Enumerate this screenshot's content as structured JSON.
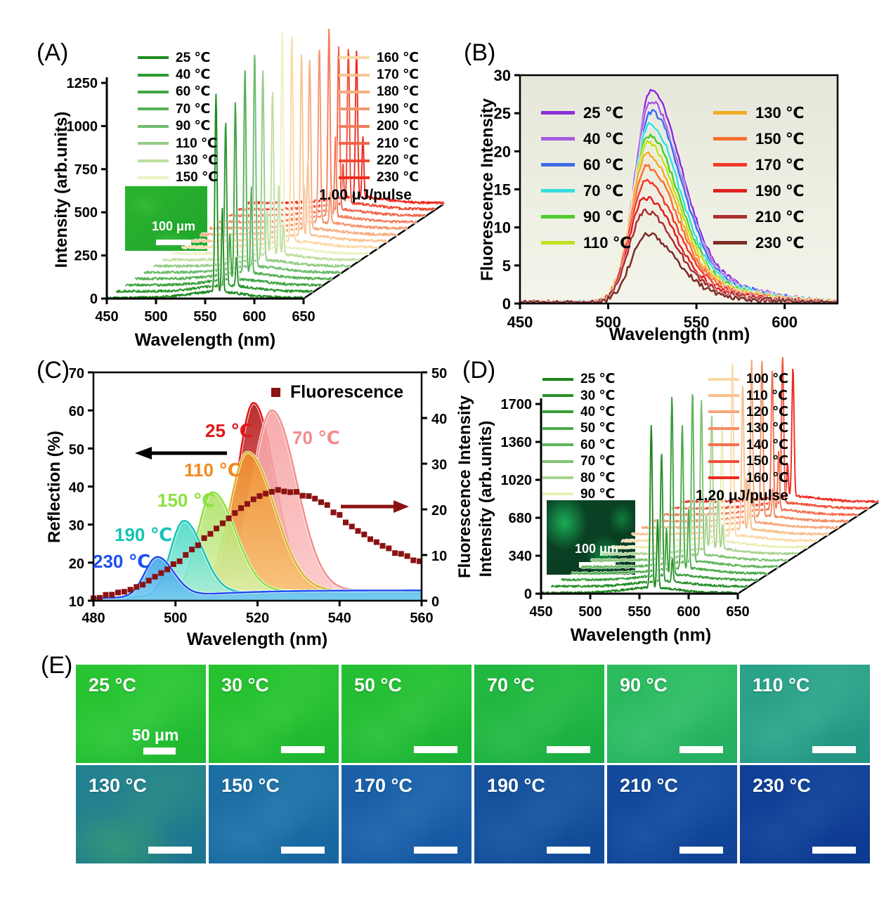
{
  "figure": {
    "background": "#ffffff",
    "description_text_visible": ""
  },
  "chart_data": [
    {
      "id": "A",
      "panel_letter": "(A)",
      "type": "line",
      "variant": "3d-waterfall-lasing-spectra",
      "xlabel": "Wavelength (nm)",
      "ylabel": "Intensity (arb.units)",
      "xlim": [
        450,
        650
      ],
      "ylim": [
        0,
        1250
      ],
      "xticks": [
        450,
        500,
        550,
        600,
        650
      ],
      "yticks": [
        0,
        250,
        500,
        750,
        1000,
        1250
      ],
      "annotation": "1.00 μJ/pulse",
      "inset_scalebar_label": "100 μm",
      "lasing_peak_nm": 561,
      "legend_position": "two columns inside top",
      "series": [
        {
          "name": "25 ℃",
          "color": "#1f8b1f",
          "peak_intensity": 1150
        },
        {
          "name": "40 ℃",
          "color": "#2e982e",
          "peak_intensity": 950
        },
        {
          "name": "60 ℃",
          "color": "#40a440",
          "peak_intensity": 1020
        },
        {
          "name": "70 ℃",
          "color": "#55b155",
          "peak_intensity": 1180
        },
        {
          "name": "90 ℃",
          "color": "#6fbd6f",
          "peak_intensity": 1250
        },
        {
          "name": "110 ℃",
          "color": "#94cc85",
          "peak_intensity": 1100
        },
        {
          "name": "130 ℃",
          "color": "#c0dfa0",
          "peak_intensity": 950
        },
        {
          "name": "150 ℃",
          "color": "#ecf2c0",
          "peak_intensity": 1250
        },
        {
          "name": "160 ℃",
          "color": "#fbd9a6",
          "peak_intensity": 1180
        },
        {
          "name": "170 ℃",
          "color": "#f9c492",
          "peak_intensity": 1050
        },
        {
          "name": "180 ℃",
          "color": "#f7ad80",
          "peak_intensity": 980
        },
        {
          "name": "190 ℃",
          "color": "#f5966e",
          "peak_intensity": 1020
        },
        {
          "name": "200 ℃",
          "color": "#f37e5c",
          "peak_intensity": 1080
        },
        {
          "name": "210 ℃",
          "color": "#f1654a",
          "peak_intensity": 950
        },
        {
          "name": "220 ℃",
          "color": "#ef4b36",
          "peak_intensity": 900
        },
        {
          "name": "230 ℃",
          "color": "#ee2a1e",
          "peak_intensity": 840
        }
      ]
    },
    {
      "id": "B",
      "panel_letter": "(B)",
      "type": "line",
      "variant": "fluorescence-spectra",
      "xlabel": "Wavelength (nm)",
      "ylabel": "Fluorescence Intensity",
      "xlim": [
        450,
        630
      ],
      "ylim": [
        0,
        30
      ],
      "xticks": [
        450,
        500,
        550,
        600
      ],
      "yticks": [
        0,
        5,
        10,
        15,
        20,
        25,
        30
      ],
      "plot_bg": [
        "#e6e7da",
        "#f4f5ea"
      ],
      "series": [
        {
          "name": "25 ℃",
          "color": "#8b2fd6",
          "peak_intensity": 28,
          "peak_nm": 524.5
        },
        {
          "name": "40 ℃",
          "color": "#a55ce0",
          "peak_intensity": 26.6,
          "peak_nm": 524
        },
        {
          "name": "60 ℃",
          "color": "#3f6ce8",
          "peak_intensity": 25.2,
          "peak_nm": 524.5
        },
        {
          "name": "70 ℃",
          "color": "#35dede",
          "peak_intensity": 23.6,
          "peak_nm": 523.5
        },
        {
          "name": "90 ℃",
          "color": "#4ecc2e",
          "peak_intensity": 22.2,
          "peak_nm": 523
        },
        {
          "name": "110 ℃",
          "color": "#c3e01e",
          "peak_intensity": 21,
          "peak_nm": 522.5
        },
        {
          "name": "130 ℃",
          "color": "#f2aa24",
          "peak_intensity": 19.6,
          "peak_nm": 522
        },
        {
          "name": "150 ℃",
          "color": "#f4702e",
          "peak_intensity": 18,
          "peak_nm": 522
        },
        {
          "name": "170 ℃",
          "color": "#f23a28",
          "peak_intensity": 16,
          "peak_nm": 521.5
        },
        {
          "name": "190 ℃",
          "color": "#e02020",
          "peak_intensity": 14,
          "peak_nm": 521
        },
        {
          "name": "210 ℃",
          "color": "#ab2f2f",
          "peak_intensity": 12.2,
          "peak_nm": 521
        },
        {
          "name": "230 ℃",
          "color": "#7c2d25",
          "peak_intensity": 9,
          "peak_nm": 522
        }
      ]
    },
    {
      "id": "C",
      "panel_letter": "(C)",
      "type": "area+scatter",
      "xlabel": "Wavelength (nm)",
      "ylabel_left": "Reflection (%)",
      "ylabel_right": "Fluorescence Intensity",
      "xlim": [
        480,
        560
      ],
      "ylim_left": [
        10,
        70
      ],
      "ylim_right": [
        0,
        50
      ],
      "xticks": [
        480,
        500,
        520,
        540,
        560
      ],
      "yticks_left": [
        10,
        20,
        30,
        40,
        50,
        60,
        70
      ],
      "yticks_right": [
        0,
        10,
        20,
        30,
        40,
        50
      ],
      "reflection_series": [
        {
          "name": "25 ℃",
          "color": "#e01818",
          "label_color": "#e01818",
          "fill": [
            "#b01212",
            "#f28080"
          ],
          "peak_nm": 519,
          "peak_reflection_pct": 62,
          "sigma_nm": [
            4.0,
            5.2
          ]
        },
        {
          "name": "70 ℃",
          "color": "#f58c8c",
          "label_color": "#f58c8c",
          "fill": [
            "#f6a0a0",
            "#fbc6c6"
          ],
          "peak_nm": 523.5,
          "peak_reflection_pct": 60,
          "sigma_nm": [
            4.8,
            6.0
          ]
        },
        {
          "name": "110 ℃",
          "color": "#d8b428",
          "label_color": "#f08a1e",
          "fill": [
            "#ef8f2a",
            "#f8c878"
          ],
          "peak_nm": 517.5,
          "peak_reflection_pct": 49,
          "sigma_nm": [
            4.3,
            6.6
          ]
        },
        {
          "name": "150 ℃",
          "color": "#8ce03c",
          "label_color": "#8ce03c",
          "fill": [
            "#a9e060",
            "#dcf2b0"
          ],
          "peak_nm": 509,
          "peak_reflection_pct": 38.5,
          "sigma_nm": [
            3.6,
            5.6
          ]
        },
        {
          "name": "190 ℃",
          "color": "#14c4b4",
          "label_color": "#14c4b4",
          "fill": [
            "#45d8c5",
            "#abeede"
          ],
          "peak_nm": 502,
          "peak_reflection_pct": 31,
          "sigma_nm": [
            3.2,
            4.6
          ]
        },
        {
          "name": "230 ℃",
          "color": "#1d50f0",
          "label_color": "#1d50f0",
          "fill": [
            "#3e9fe8",
            "#70c8f2"
          ],
          "peak_nm": 495.5,
          "peak_reflection_pct": 21.5,
          "sigma_nm": [
            3.0,
            4.0
          ]
        }
      ],
      "fluorescence_scatter": {
        "label": "Fluorescence",
        "color": "#8b1212",
        "points": [
          [
            480,
            0.5
          ],
          [
            484,
            1.2
          ],
          [
            488,
            2.2
          ],
          [
            492,
            3.6
          ],
          [
            496,
            5.6
          ],
          [
            500,
            8
          ],
          [
            504,
            11
          ],
          [
            508,
            14.5
          ],
          [
            512,
            17.5
          ],
          [
            516,
            20.5
          ],
          [
            520,
            22.8
          ],
          [
            524,
            24
          ],
          [
            528,
            24
          ],
          [
            532,
            23
          ],
          [
            536,
            21.5
          ],
          [
            540,
            18.5
          ],
          [
            544,
            15.5
          ],
          [
            548,
            13.2
          ],
          [
            552,
            11.2
          ],
          [
            556,
            9.6
          ],
          [
            560,
            8.6
          ]
        ]
      }
    },
    {
      "id": "D",
      "panel_letter": "(D)",
      "type": "line",
      "variant": "3d-waterfall-lasing-spectra",
      "xlabel": "Wavelength (nm)",
      "ylabel": "Intensity (arb.units)",
      "xlim": [
        450,
        650
      ],
      "ylim": [
        0,
        1700
      ],
      "xticks": [
        450,
        500,
        550,
        600,
        650
      ],
      "yticks": [
        0,
        340,
        680,
        1020,
        1360,
        1700
      ],
      "annotation": "1.20 μJ/pulse",
      "inset_scalebar_label": "100 μm",
      "lasing_peak_nm": 562,
      "legend_position": "two columns inside top",
      "series": [
        {
          "name": "25 ℃",
          "color": "#1d861d",
          "peak_intensity": 1450
        },
        {
          "name": "30 ℃",
          "color": "#2a922a",
          "peak_intensity": 1150
        },
        {
          "name": "40 ℃",
          "color": "#389e38",
          "peak_intensity": 1600
        },
        {
          "name": "50 ℃",
          "color": "#4aaa48",
          "peak_intensity": 1280
        },
        {
          "name": "60 ℃",
          "color": "#60b45a",
          "peak_intensity": 1520
        },
        {
          "name": "70 ℃",
          "color": "#80c272",
          "peak_intensity": 1380
        },
        {
          "name": "80 ℃",
          "color": "#a8d28e",
          "peak_intensity": 1200
        },
        {
          "name": "90 ℃",
          "color": "#e8efb4",
          "peak_intensity": 1050
        },
        {
          "name": "100 ℃",
          "color": "#fbd9a6",
          "peak_intensity": 1550
        },
        {
          "name": "110 ℃",
          "color": "#f9c08c",
          "peak_intensity": 1300
        },
        {
          "name": "120 ℃",
          "color": "#f7a678",
          "peak_intensity": 1450
        },
        {
          "name": "130 ℃",
          "color": "#f58c64",
          "peak_intensity": 1400
        },
        {
          "name": "140 ℃",
          "color": "#f37050",
          "peak_intensity": 1250
        },
        {
          "name": "150 ℃",
          "color": "#f1523c",
          "peak_intensity": 1300
        },
        {
          "name": "160 ℃",
          "color": "#ee2a1e",
          "peak_intensity": 1150
        }
      ]
    },
    {
      "id": "E",
      "panel_letter": "(E)",
      "type": "micrograph-grid",
      "scalebar_label": "50 μm",
      "cells": [
        {
          "label": "25 °C",
          "base": "#28c431",
          "base2": "#1fb733",
          "blob": "#52dc58"
        },
        {
          "label": "30 °C",
          "base": "#26c22f",
          "base2": "#1db531",
          "blob": "#4fd850"
        },
        {
          "label": "50 °C",
          "base": "#24bf33",
          "base2": "#1cb236",
          "blob": "#4bd553"
        },
        {
          "label": "70 °C",
          "base": "#21b83f",
          "base2": "#1aac42",
          "blob": "#47cf62"
        },
        {
          "label": "90 °C",
          "base": "#2cbb5f",
          "base2": "#24ae62",
          "blob": "#55d283"
        },
        {
          "label": "110 °C",
          "base": "#2aa287",
          "base2": "#229483",
          "blob": "#52c0a6"
        },
        {
          "label": "130 °C",
          "base": "#23818f",
          "base2": "#1d7390",
          "blob": "#3da479",
          "patch": "#36a06a"
        },
        {
          "label": "150 °C",
          "base": "#1c6fa4",
          "base2": "#1765a0",
          "blob": "#3f93c2"
        },
        {
          "label": "170 °C",
          "base": "#1a60a8",
          "base2": "#1557a2",
          "blob": "#3b83c0"
        },
        {
          "label": "190 °C",
          "base": "#15519d",
          "base2": "#114a97",
          "blob": "#3673b6"
        },
        {
          "label": "210 °C",
          "base": "#12499b",
          "base2": "#0f4295",
          "blob": "#3269b3"
        },
        {
          "label": "230 °C",
          "base": "#0f4096",
          "base2": "#0c3a90",
          "blob": "#2f60ae"
        }
      ]
    }
  ]
}
